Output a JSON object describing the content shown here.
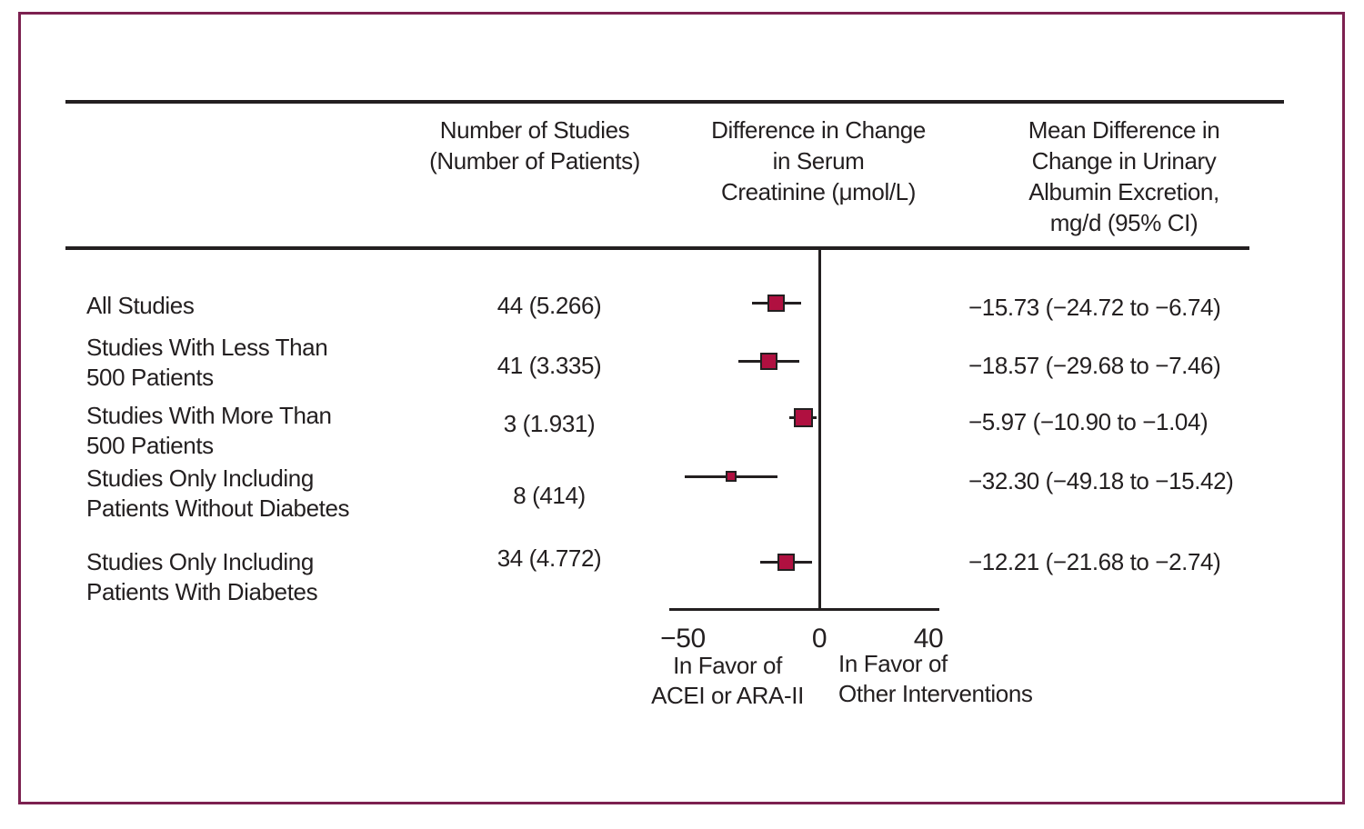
{
  "figure_frame": {
    "border_color": "#7c2150"
  },
  "header": {
    "col_studies": [
      "Number of Studies",
      "(Number of Patients)"
    ],
    "col_creatinine": [
      "Difference in Change",
      "in Serum",
      "Creatinine (μmol/L)"
    ],
    "col_albumin": [
      "Mean Difference in",
      "Change in Urinary",
      "Albumin Excretion,",
      "mg/d (95% CI)"
    ]
  },
  "chart_data": {
    "type": "forest",
    "title": "",
    "rows": [
      {
        "label_lines": [
          "All Studies"
        ],
        "studies_patients": "44 (5.266)",
        "mean": -15.73,
        "ci_low": -24.72,
        "ci_high": -6.74,
        "ci_text": "−15.73 (−24.72 to −6.74)",
        "marker_size": 19
      },
      {
        "label_lines": [
          "Studies With Less Than",
          "500 Patients"
        ],
        "studies_patients": "41 (3.335)",
        "mean": -18.57,
        "ci_low": -29.68,
        "ci_high": -7.46,
        "ci_text": "−18.57 (−29.68 to −7.46)",
        "marker_size": 19
      },
      {
        "label_lines": [
          "Studies With More Than",
          "500 Patients"
        ],
        "studies_patients": "3 (1.931)",
        "mean": -5.97,
        "ci_low": -10.9,
        "ci_high": -1.04,
        "ci_text": "−5.97 (−10.90 to −1.04)",
        "marker_size": 21
      },
      {
        "label_lines": [
          "Studies Only Including",
          "Patients Without Diabetes"
        ],
        "studies_patients": "8 (414)",
        "mean": -32.3,
        "ci_low": -49.18,
        "ci_high": -15.42,
        "ci_text": "−32.30 (−49.18 to −15.42)",
        "marker_size": 12
      },
      {
        "label_lines": [
          "Studies Only Including",
          "Patients With Diabetes"
        ],
        "studies_patients": "34 (4.772)",
        "mean": -12.21,
        "ci_low": -21.68,
        "ci_high": -2.74,
        "ci_text": "−12.21 (−21.68 to −2.74)",
        "marker_size": 19
      }
    ],
    "axis": {
      "xlim": [
        -55,
        44
      ],
      "ticks": [
        {
          "value": -50,
          "label": "−50"
        },
        {
          "value": 0,
          "label": "0"
        },
        {
          "value": 40,
          "label": "40"
        }
      ]
    },
    "footnote_left": [
      "In Favor of",
      "ACEI or ARA-II"
    ],
    "footnote_right": [
      "In Favor of",
      "Other Interventions"
    ],
    "marker_color": "#b01040",
    "line_color": "#231f20"
  }
}
